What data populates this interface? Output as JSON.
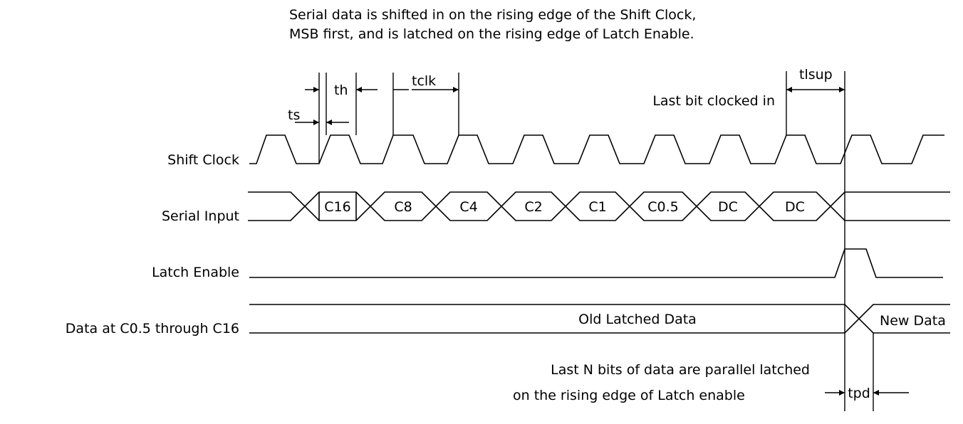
{
  "caption": {
    "line1": "Serial data is shifted in on the rising edge of the Shift Clock,",
    "line2": "MSB first, and is latched on the rising edge of Latch Enable."
  },
  "signals": {
    "shift_clock": "Shift Clock",
    "serial_input": "Serial Input",
    "latch_enable": "Latch Enable",
    "data_out": "Data at C0.5 through C16"
  },
  "serial_bits": [
    "C16",
    "C8",
    "C4",
    "C2",
    "C1",
    "C0.5",
    "DC",
    "DC"
  ],
  "data_states": {
    "old": "Old Latched Data",
    "new": "New Data"
  },
  "timing": {
    "ts": "ts",
    "th": "th",
    "tclk": "tclk",
    "tlsup": "tlsup",
    "tpd": "tpd"
  },
  "notes": {
    "last_bit": "Last bit clocked in",
    "latched_line1": "Last N bits of data are parallel latched",
    "latched_line2": "on the rising edge of Latch enable"
  }
}
